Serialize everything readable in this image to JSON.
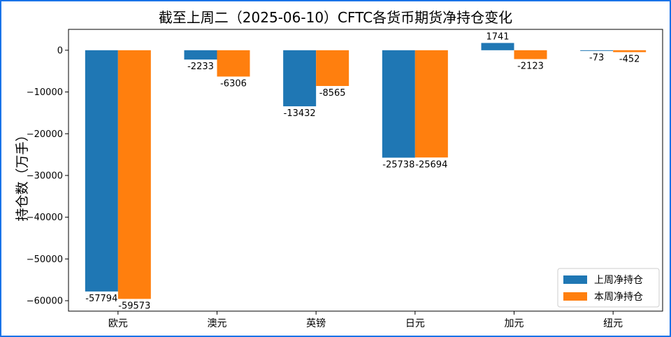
{
  "chart_data": {
    "type": "bar",
    "title": "截至上周二（2025-06-10）CFTC各货币期货净持仓变化",
    "ylabel": "持仓数（万手）",
    "xlabel": "",
    "ylim": [
      -62500,
      5000
    ],
    "yticks": [
      0,
      -10000,
      -20000,
      -30000,
      -40000,
      -50000,
      -60000
    ],
    "categories": [
      "欧元",
      "澳元",
      "英镑",
      "日元",
      "加元",
      "纽元"
    ],
    "series": [
      {
        "name": "上周净持仓",
        "color": "#1f77b4",
        "values": [
          -57794,
          -2233,
          -13432,
          -25738,
          1741,
          -73
        ]
      },
      {
        "name": "本周净持仓",
        "color": "#ff7f0e",
        "values": [
          -59573,
          -6306,
          -8565,
          -25694,
          -2123,
          -452
        ]
      }
    ],
    "legend": "lower-right",
    "grid": false
  }
}
